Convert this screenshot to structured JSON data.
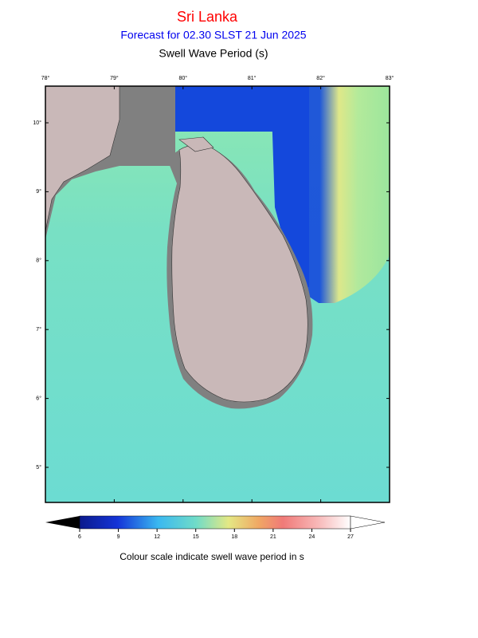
{
  "header": {
    "title": "Sri Lanka",
    "subtitle": "Forecast for  02.30 SLST 21 Jun 2025",
    "variable": "Swell Wave Period (s)"
  },
  "map": {
    "lon_ticks": [
      {
        "value": 78,
        "label": "78°"
      },
      {
        "value": 79,
        "label": "79°"
      },
      {
        "value": 80,
        "label": "80°"
      },
      {
        "value": 81,
        "label": "81°"
      },
      {
        "value": 82,
        "label": "82°"
      },
      {
        "value": 83,
        "label": "83°"
      }
    ],
    "lat_ticks": [
      {
        "value": 10,
        "label": "10°"
      },
      {
        "value": 9,
        "label": "9°"
      },
      {
        "value": 8,
        "label": "8°"
      },
      {
        "value": 7,
        "label": "7°"
      },
      {
        "value": 6,
        "label": "6°"
      },
      {
        "value": 5,
        "label": "5°"
      }
    ]
  },
  "colorbar": {
    "ticks": [
      6,
      9,
      12,
      15,
      18,
      21,
      24,
      27
    ],
    "caption": "Colour scale indicate swell wave period in s"
  }
}
